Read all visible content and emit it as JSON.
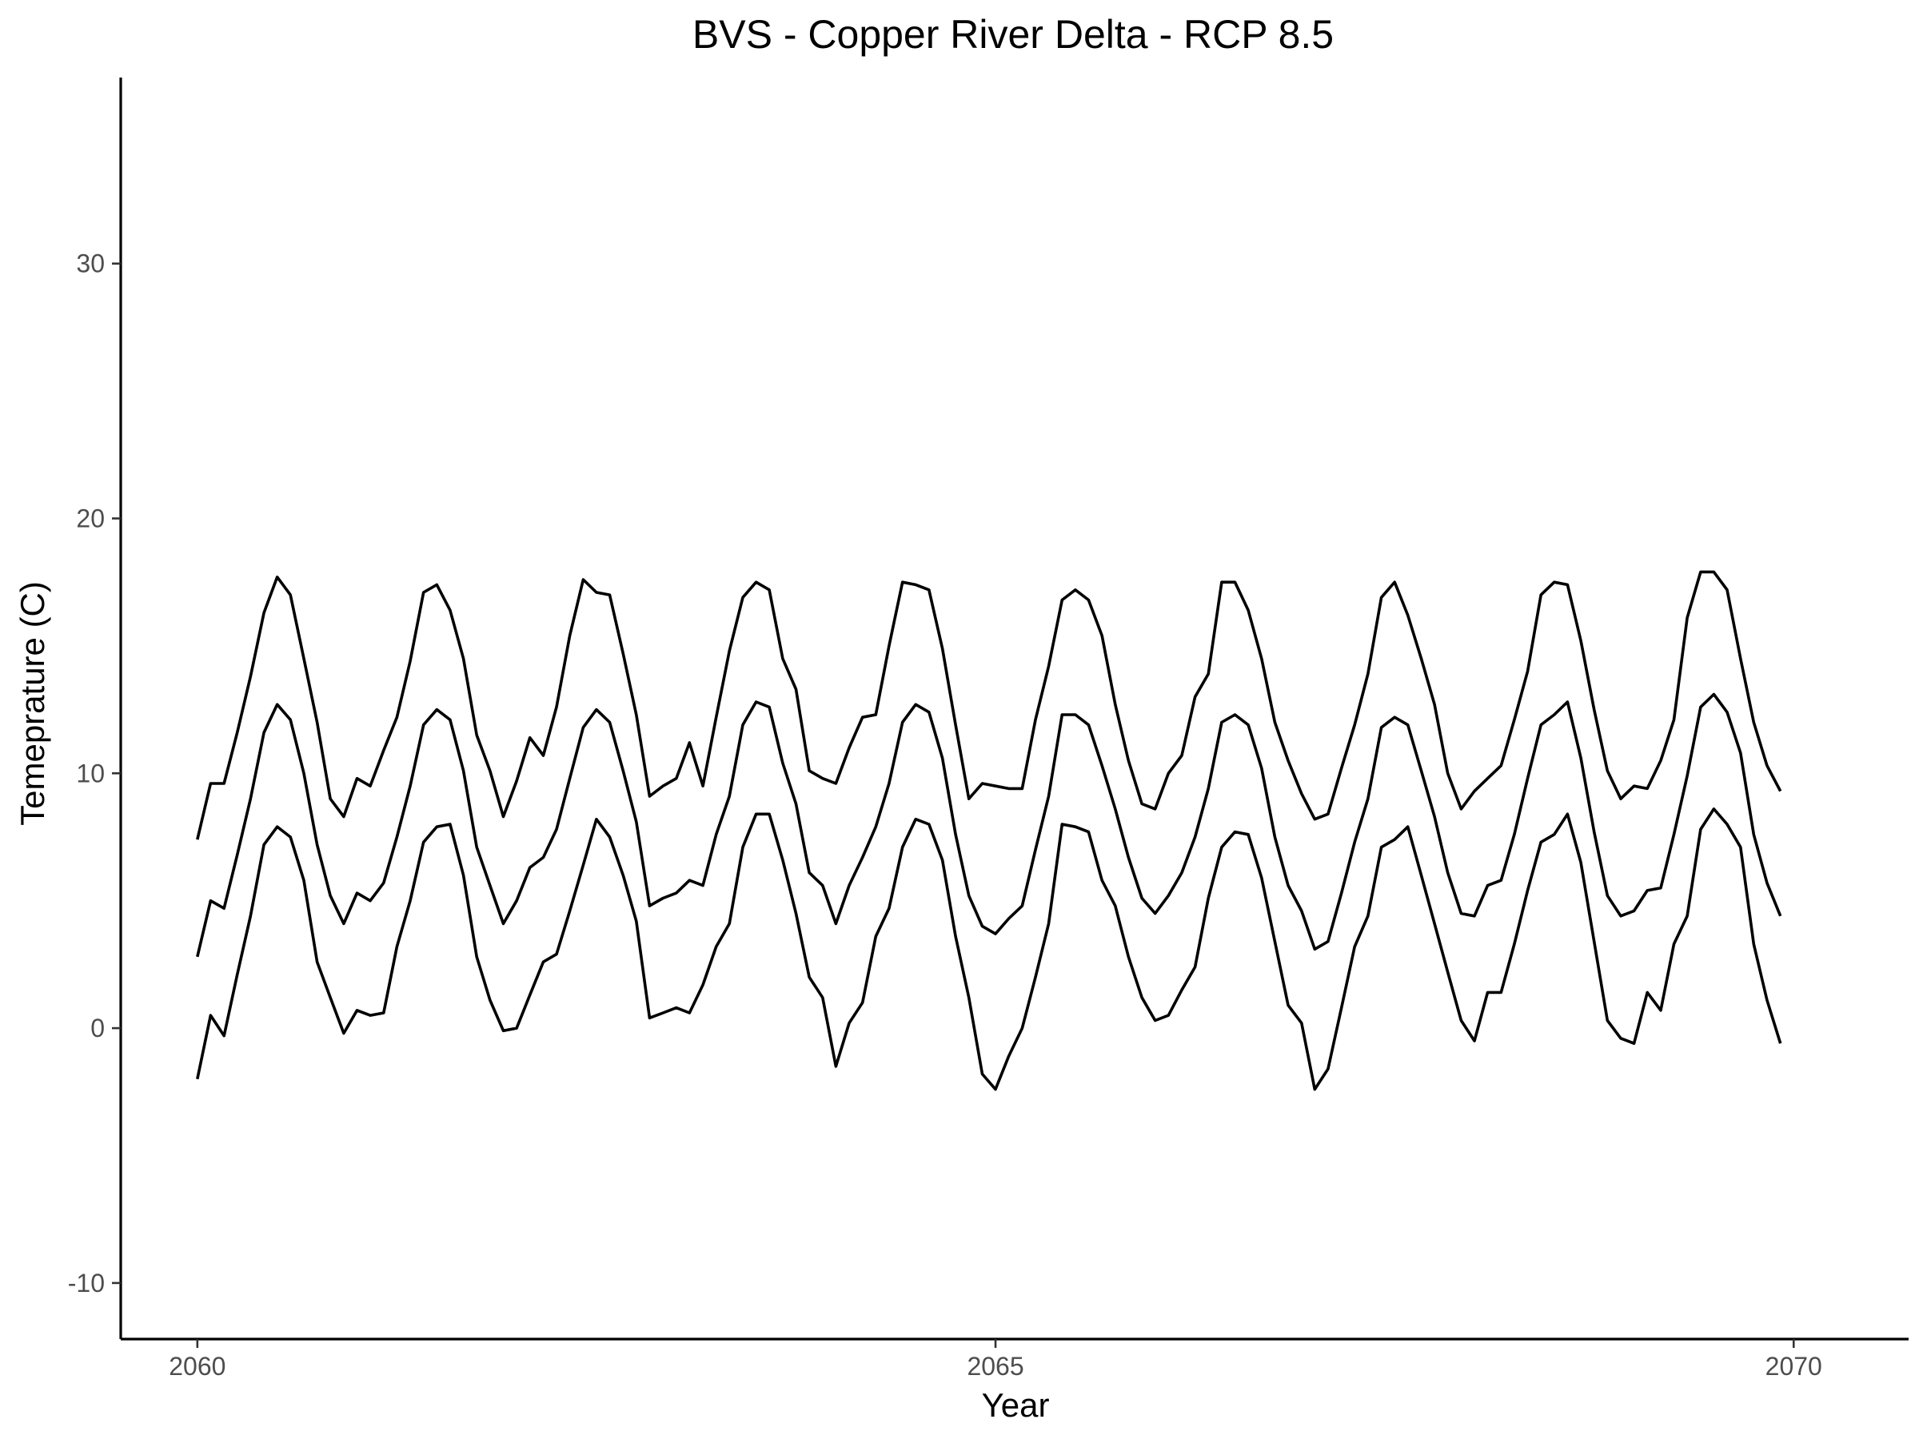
{
  "chart_data": {
    "type": "line",
    "title": "BVS - Copper River Delta - RCP 8.5",
    "xlabel": "Year",
    "ylabel": "Temeprature (C)",
    "xlim": [
      2059.52,
      2070.72
    ],
    "ylim": [
      -12.2,
      37.3
    ],
    "x_ticks": [
      2060,
      2065,
      2070
    ],
    "x_tick_labels": [
      "2060",
      "2065",
      "2070"
    ],
    "y_ticks": [
      -10,
      0,
      10,
      20,
      30
    ],
    "y_tick_labels": [
      "-10",
      "0",
      "10",
      "20",
      "30"
    ],
    "grid": false,
    "legend": "none",
    "line_color": "#000000",
    "x": [
      2060,
      2060.083,
      2060.167,
      2060.25,
      2060.333,
      2060.417,
      2060.5,
      2060.583,
      2060.667,
      2060.75,
      2060.833,
      2060.917,
      2061,
      2061.083,
      2061.167,
      2061.25,
      2061.333,
      2061.417,
      2061.5,
      2061.583,
      2061.667,
      2061.75,
      2061.833,
      2061.917,
      2062,
      2062.083,
      2062.167,
      2062.25,
      2062.333,
      2062.417,
      2062.5,
      2062.583,
      2062.667,
      2062.75,
      2062.833,
      2062.917,
      2063,
      2063.083,
      2063.167,
      2063.25,
      2063.333,
      2063.417,
      2063.5,
      2063.583,
      2063.667,
      2063.75,
      2063.833,
      2063.917,
      2064,
      2064.083,
      2064.167,
      2064.25,
      2064.333,
      2064.417,
      2064.5,
      2064.583,
      2064.667,
      2064.75,
      2064.833,
      2064.917,
      2065,
      2065.083,
      2065.167,
      2065.25,
      2065.333,
      2065.417,
      2065.5,
      2065.583,
      2065.667,
      2065.75,
      2065.833,
      2065.917,
      2066,
      2066.083,
      2066.167,
      2066.25,
      2066.333,
      2066.417,
      2066.5,
      2066.583,
      2066.667,
      2066.75,
      2066.833,
      2066.917,
      2067,
      2067.083,
      2067.167,
      2067.25,
      2067.333,
      2067.417,
      2067.5,
      2067.583,
      2067.667,
      2067.75,
      2067.833,
      2067.917,
      2068,
      2068.083,
      2068.167,
      2068.25,
      2068.333,
      2068.417,
      2068.5,
      2068.583,
      2068.667,
      2068.75,
      2068.833,
      2068.917,
      2069,
      2069.083,
      2069.167,
      2069.25,
      2069.333,
      2069.417,
      2069.5,
      2069.583,
      2069.667,
      2069.75,
      2069.833,
      2069.917
    ],
    "series": [
      {
        "values": [
          7.4,
          9.6,
          9.6,
          11.6,
          13.8,
          16.3,
          17.7,
          17.0,
          14.5,
          12.0,
          9.0,
          8.3,
          9.8,
          9.5,
          10.9,
          12.2,
          14.4,
          17.1,
          17.4,
          16.4,
          14.5,
          11.5,
          10.1,
          8.3,
          9.7,
          11.4,
          10.7,
          12.6,
          15.4,
          17.6,
          17.1,
          17.0,
          14.7,
          12.3,
          9.1,
          9.5,
          9.8,
          11.2,
          9.5,
          12.2,
          14.8,
          16.9,
          17.5,
          17.2,
          14.5,
          13.3,
          10.1,
          9.8,
          9.6,
          11.0,
          12.2,
          12.3,
          15.0,
          17.5,
          17.4,
          17.2,
          14.9,
          11.9,
          9.0,
          9.6,
          9.5,
          9.4,
          9.4,
          12.1,
          14.2,
          16.8,
          17.2,
          16.8,
          15.4,
          12.7,
          10.5,
          8.8,
          8.6,
          10.0,
          10.7,
          13.0,
          13.9,
          17.5,
          17.5,
          16.4,
          14.5,
          12.0,
          10.5,
          9.2,
          8.2,
          8.4,
          10.2,
          11.9,
          13.9,
          16.9,
          17.5,
          16.2,
          14.5,
          12.7,
          10.0,
          8.6,
          9.3,
          9.8,
          10.3,
          12.1,
          14.0,
          17.0,
          17.5,
          17.4,
          15.2,
          12.5,
          10.1,
          9.0,
          9.5,
          9.4,
          10.5,
          12.1,
          16.1,
          17.9,
          17.9,
          17.2,
          14.5,
          12.0,
          10.3,
          9.3
        ]
      },
      {
        "values": [
          2.8,
          5.0,
          4.7,
          6.8,
          9.0,
          11.6,
          12.7,
          12.1,
          10.0,
          7.2,
          5.2,
          4.1,
          5.3,
          5.0,
          5.7,
          7.5,
          9.5,
          11.9,
          12.5,
          12.1,
          10.1,
          7.1,
          5.6,
          4.1,
          5.0,
          6.3,
          6.7,
          7.8,
          9.8,
          11.8,
          12.5,
          12.0,
          10.1,
          8.1,
          4.8,
          5.1,
          5.3,
          5.8,
          5.6,
          7.6,
          9.1,
          11.9,
          12.8,
          12.6,
          10.4,
          8.8,
          6.1,
          5.6,
          4.1,
          5.6,
          6.7,
          7.9,
          9.6,
          12.0,
          12.7,
          12.4,
          10.6,
          7.6,
          5.2,
          4.0,
          3.7,
          4.3,
          4.8,
          7.0,
          9.1,
          12.3,
          12.3,
          11.9,
          10.3,
          8.6,
          6.7,
          5.1,
          4.5,
          5.2,
          6.1,
          7.5,
          9.4,
          12.0,
          12.3,
          11.9,
          10.2,
          7.5,
          5.6,
          4.6,
          3.1,
          3.4,
          5.3,
          7.3,
          9.0,
          11.8,
          12.2,
          11.9,
          10.1,
          8.3,
          6.1,
          4.5,
          4.4,
          5.6,
          5.8,
          7.6,
          9.8,
          11.9,
          12.3,
          12.8,
          10.6,
          7.7,
          5.2,
          4.4,
          4.6,
          5.4,
          5.5,
          7.6,
          9.9,
          12.6,
          13.1,
          12.4,
          10.8,
          7.6,
          5.7,
          4.4
        ]
      },
      {
        "values": [
          -2.0,
          0.5,
          -0.3,
          2.1,
          4.4,
          7.2,
          7.9,
          7.5,
          5.8,
          2.6,
          1.2,
          -0.2,
          0.7,
          0.5,
          0.6,
          3.2,
          5.0,
          7.3,
          7.9,
          8.0,
          6.0,
          2.8,
          1.1,
          -0.1,
          0.0,
          1.3,
          2.6,
          2.9,
          4.6,
          6.4,
          8.2,
          7.5,
          6.0,
          4.2,
          0.4,
          0.6,
          0.8,
          0.6,
          1.7,
          3.2,
          4.1,
          7.1,
          8.4,
          8.4,
          6.6,
          4.5,
          2.0,
          1.2,
          -1.5,
          0.2,
          1.0,
          3.6,
          4.7,
          7.1,
          8.2,
          8.0,
          6.6,
          3.6,
          1.2,
          -1.8,
          -2.4,
          -1.1,
          0.0,
          2.0,
          4.1,
          8.0,
          7.9,
          7.7,
          5.8,
          4.8,
          2.8,
          1.2,
          0.3,
          0.5,
          1.5,
          2.4,
          5.1,
          7.1,
          7.7,
          7.6,
          5.9,
          3.4,
          0.9,
          0.2,
          -2.4,
          -1.6,
          0.8,
          3.2,
          4.4,
          7.1,
          7.4,
          7.9,
          6.0,
          4.1,
          2.2,
          0.3,
          -0.5,
          1.4,
          1.4,
          3.3,
          5.4,
          7.3,
          7.6,
          8.4,
          6.5,
          3.4,
          0.3,
          -0.4,
          -0.6,
          1.4,
          0.7,
          3.3,
          4.4,
          7.8,
          8.6,
          8.0,
          7.1,
          3.3,
          1.1,
          -0.6
        ]
      }
    ]
  }
}
